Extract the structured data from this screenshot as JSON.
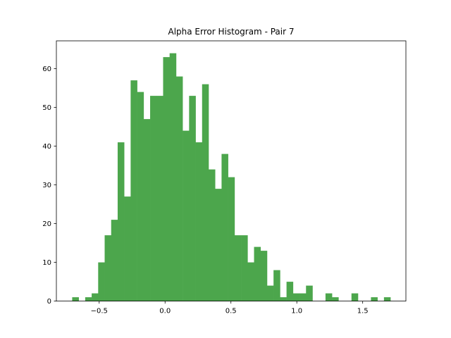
{
  "chart_data": {
    "type": "bar",
    "title": "Alpha Error Histogram - Pair 7",
    "xlabel": "",
    "ylabel": "",
    "bin_start": -0.705,
    "bin_width": 0.0493,
    "counts": [
      1,
      0,
      1,
      2,
      10,
      17,
      21,
      41,
      27,
      57,
      54,
      47,
      53,
      53,
      63,
      64,
      58,
      44,
      53,
      41,
      56,
      34,
      29,
      38,
      32,
      17,
      17,
      10,
      14,
      13,
      4,
      8,
      1,
      5,
      2,
      2,
      4,
      0,
      0,
      2,
      1,
      0,
      0,
      2,
      0,
      0,
      1,
      0,
      1
    ],
    "xlim": [
      -0.825,
      1.828
    ],
    "ylim": [
      0,
      67.2
    ],
    "x_ticks": [
      -0.5,
      0.0,
      0.5,
      1.0,
      1.5
    ],
    "x_tick_labels": [
      "−0.5",
      "0.0",
      "0.5",
      "1.0",
      "1.5"
    ],
    "y_ticks": [
      0,
      10,
      20,
      30,
      40,
      50,
      60
    ],
    "y_tick_labels": [
      "0",
      "10",
      "20",
      "30",
      "40",
      "50",
      "60"
    ],
    "bar_color": "#4ca64c",
    "grid": false
  }
}
